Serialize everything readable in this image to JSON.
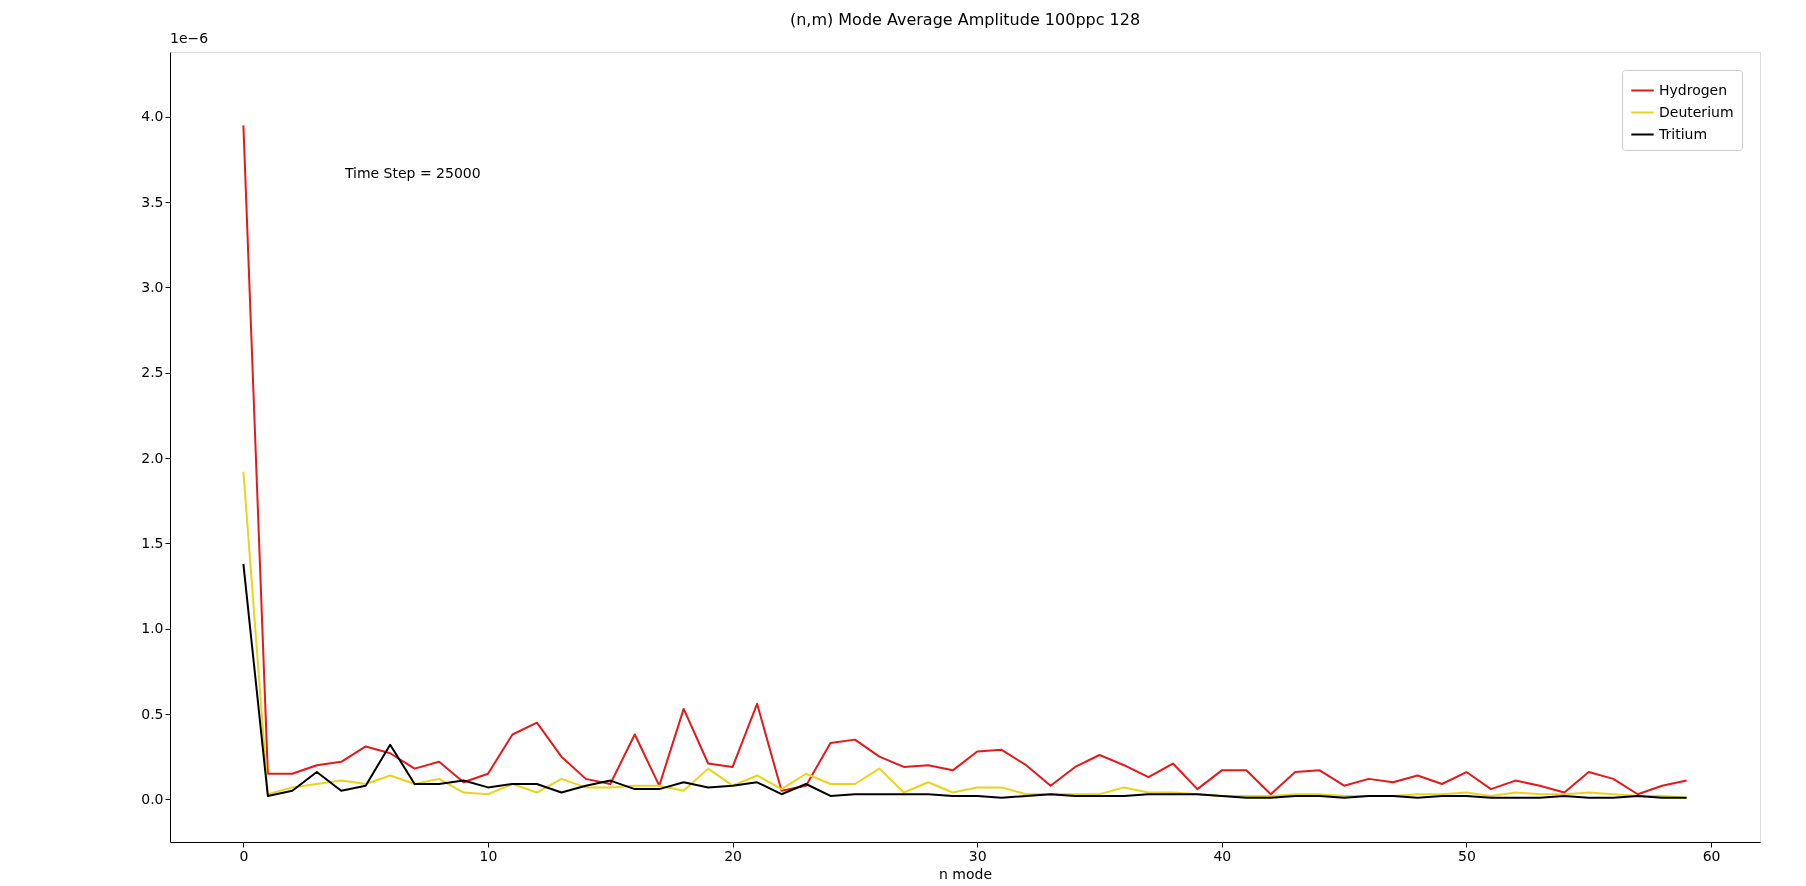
{
  "chart_data": {
    "type": "line",
    "title": "(n,m) Mode Average Amplitude 100ppc 128",
    "xlabel": "n mode",
    "annotations": [
      "Time Step = 25000",
      "1e−6"
    ],
    "x": [
      0,
      1,
      2,
      3,
      4,
      5,
      6,
      7,
      8,
      9,
      10,
      11,
      12,
      13,
      14,
      15,
      16,
      17,
      18,
      19,
      20,
      21,
      22,
      23,
      24,
      25,
      26,
      27,
      28,
      29,
      30,
      31,
      32,
      33,
      34,
      35,
      36,
      37,
      38,
      39,
      40,
      41,
      42,
      43,
      44,
      45,
      46,
      47,
      48,
      49,
      50,
      51,
      52,
      53,
      54,
      55,
      56,
      57,
      58,
      59
    ],
    "series": [
      {
        "name": "Hydrogen",
        "color": "#e31a1c",
        "values": [
          3.95,
          0.15,
          0.15,
          0.2,
          0.22,
          0.31,
          0.27,
          0.18,
          0.22,
          0.1,
          0.15,
          0.38,
          0.45,
          0.25,
          0.12,
          0.09,
          0.38,
          0.08,
          0.53,
          0.21,
          0.19,
          0.56,
          0.05,
          0.08,
          0.33,
          0.35,
          0.25,
          0.19,
          0.2,
          0.17,
          0.28,
          0.29,
          0.2,
          0.08,
          0.19,
          0.26,
          0.2,
          0.13,
          0.21,
          0.06,
          0.17,
          0.17,
          0.03,
          0.16,
          0.17,
          0.08,
          0.12,
          0.1,
          0.14,
          0.09,
          0.16,
          0.06,
          0.11,
          0.08,
          0.04,
          0.16,
          0.12,
          0.03,
          0.08,
          0.11
        ]
      },
      {
        "name": "Deuterium",
        "color": "#e8d41c",
        "values": [
          1.92,
          0.03,
          0.07,
          0.09,
          0.11,
          0.09,
          0.14,
          0.09,
          0.12,
          0.04,
          0.03,
          0.09,
          0.04,
          0.12,
          0.07,
          0.07,
          0.08,
          0.08,
          0.05,
          0.18,
          0.08,
          0.14,
          0.06,
          0.15,
          0.09,
          0.09,
          0.18,
          0.04,
          0.1,
          0.04,
          0.07,
          0.07,
          0.03,
          0.03,
          0.03,
          0.03,
          0.07,
          0.04,
          0.04,
          0.03,
          0.02,
          0.02,
          0.02,
          0.03,
          0.03,
          0.02,
          0.02,
          0.02,
          0.03,
          0.03,
          0.04,
          0.02,
          0.04,
          0.03,
          0.03,
          0.04,
          0.03,
          0.02,
          0.02,
          0.01
        ]
      },
      {
        "name": "Tritium",
        "color": "#000000",
        "values": [
          1.38,
          0.02,
          0.05,
          0.16,
          0.05,
          0.08,
          0.32,
          0.09,
          0.09,
          0.11,
          0.07,
          0.09,
          0.09,
          0.04,
          0.08,
          0.11,
          0.06,
          0.06,
          0.1,
          0.07,
          0.08,
          0.1,
          0.03,
          0.09,
          0.02,
          0.03,
          0.03,
          0.03,
          0.03,
          0.02,
          0.02,
          0.01,
          0.02,
          0.03,
          0.02,
          0.02,
          0.02,
          0.03,
          0.03,
          0.03,
          0.02,
          0.01,
          0.01,
          0.02,
          0.02,
          0.01,
          0.02,
          0.02,
          0.01,
          0.02,
          0.02,
          0.01,
          0.01,
          0.01,
          0.02,
          0.01,
          0.01,
          0.02,
          0.01,
          0.01
        ]
      }
    ],
    "xlim": [
      -3,
      62
    ],
    "ylim": [
      -0.25,
      4.38
    ],
    "xticks": [
      0,
      10,
      20,
      30,
      40,
      50,
      60
    ],
    "yticks": [
      {
        "value": 0,
        "label": "0.0"
      },
      {
        "value": 0.5,
        "label": "0.5"
      },
      {
        "value": 1,
        "label": "1.0"
      },
      {
        "value": 1.5,
        "label": "1.5"
      },
      {
        "value": 2,
        "label": "2.0"
      },
      {
        "value": 2.5,
        "label": "2.5"
      },
      {
        "value": 3,
        "label": "3.0"
      },
      {
        "value": 3.5,
        "label": "3.5"
      },
      {
        "value": 4,
        "label": "4.0"
      }
    ],
    "grid": false,
    "legend": "top right",
    "marker": "none",
    "line_style": "solid"
  }
}
